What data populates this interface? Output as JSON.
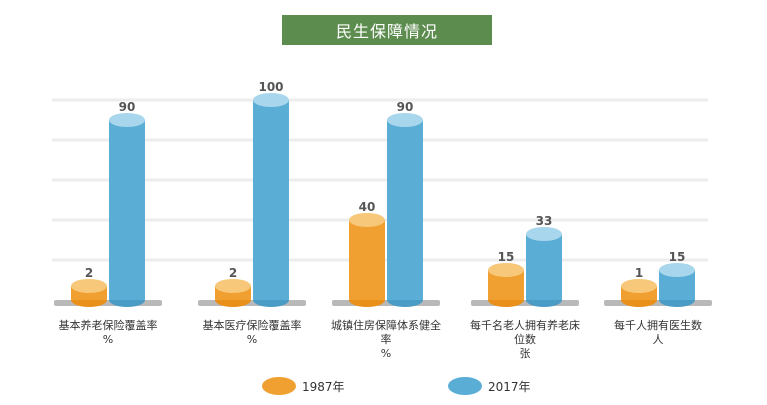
{
  "chart_data": {
    "type": "bar",
    "title": "民生保障情况",
    "categories": [
      [
        "基本养老保险覆盖率",
        "%"
      ],
      [
        "基本医疗保险覆盖率",
        "%"
      ],
      [
        "城镇住房保障体系健全率",
        "%"
      ],
      [
        "每千名老人拥有养老床位数",
        "张"
      ],
      [
        "每千人拥有医生数",
        "人"
      ]
    ],
    "series": [
      {
        "name": "1987年",
        "color": "#f0a030",
        "values": [
          2,
          2,
          40,
          15,
          1
        ],
        "labels": [
          "2",
          "2",
          "40",
          "15",
          "1"
        ]
      },
      {
        "name": "2017年",
        "color": "#5aaed6",
        "values": [
          90,
          100,
          90,
          33,
          15
        ],
        "labels": [
          "90",
          "100",
          "90",
          "33",
          "15"
        ]
      }
    ],
    "grid": true,
    "legend_position": "bottom"
  }
}
